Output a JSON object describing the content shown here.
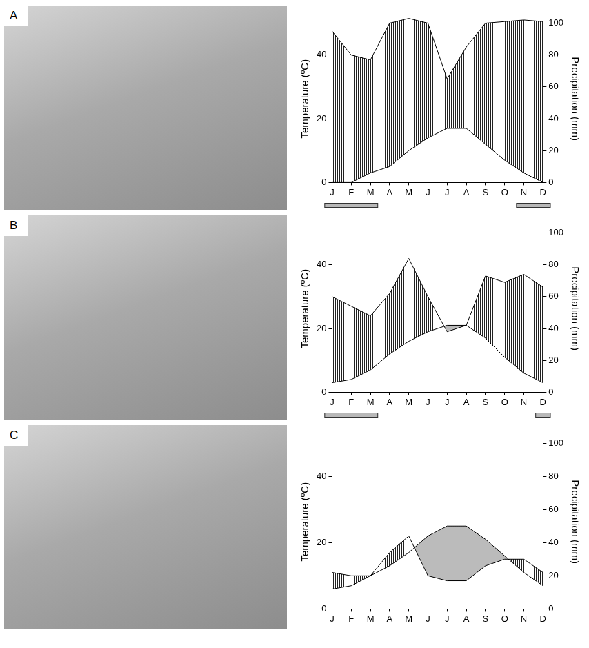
{
  "chart_data": [
    {
      "type": "line",
      "panel": "A",
      "categories": [
        "J",
        "F",
        "M",
        "A",
        "M",
        "J",
        "J",
        "A",
        "S",
        "O",
        "N",
        "D"
      ],
      "y_label": "Temperature (ºC)",
      "y2_label": "Precipitation (mm)",
      "ylim": [
        0,
        52.5
      ],
      "yticks": [
        0,
        20,
        40
      ],
      "y2lim": [
        0,
        105
      ],
      "y2ticks": [
        0,
        20,
        40,
        60,
        80,
        100
      ],
      "series": [
        {
          "axis": "y",
          "color": "#000000",
          "values": [
            0,
            0,
            3,
            5,
            10,
            14,
            17,
            17,
            12,
            7,
            3,
            0
          ]
        },
        {
          "axis": "y2",
          "color": "#000000",
          "values": [
            95,
            80,
            77,
            100,
            103,
            100,
            65,
            85,
            100,
            101,
            102,
            101
          ]
        }
      ],
      "frost": [
        true,
        true,
        true,
        false,
        false,
        false,
        false,
        false,
        false,
        false,
        true,
        true
      ]
    },
    {
      "type": "line",
      "panel": "B",
      "categories": [
        "J",
        "F",
        "M",
        "A",
        "M",
        "J",
        "J",
        "A",
        "S",
        "O",
        "N",
        "D"
      ],
      "y_label": "Temperature (ºC)",
      "y2_label": "Precipitation (mm)",
      "ylim": [
        0,
        52.5
      ],
      "yticks": [
        0,
        20,
        40
      ],
      "y2lim": [
        0,
        105
      ],
      "y2ticks": [
        0,
        20,
        40,
        60,
        80,
        100
      ],
      "series": [
        {
          "axis": "y",
          "color": "#000000",
          "values": [
            3,
            4,
            7,
            12,
            16,
            19,
            21,
            21,
            17,
            11,
            6,
            3
          ]
        },
        {
          "axis": "y2",
          "color": "#000000",
          "values": [
            60,
            54,
            48,
            62,
            84,
            60,
            38,
            42,
            73,
            69,
            74,
            66
          ]
        }
      ],
      "frost": [
        true,
        true,
        true,
        false,
        false,
        false,
        false,
        false,
        false,
        false,
        false,
        true
      ]
    },
    {
      "type": "line",
      "panel": "C",
      "categories": [
        "J",
        "F",
        "M",
        "A",
        "M",
        "J",
        "J",
        "A",
        "S",
        "O",
        "N",
        "D"
      ],
      "y_label": "Temperature (ºC)",
      "y2_label": "Precipitation (mm)",
      "ylim": [
        0,
        52.5
      ],
      "yticks": [
        0,
        20,
        40
      ],
      "y2lim": [
        0,
        105
      ],
      "y2ticks": [
        0,
        20,
        40,
        60,
        80,
        100
      ],
      "series": [
        {
          "axis": "y",
          "color": "#000000",
          "values": [
            6,
            7,
            10,
            13,
            17,
            22,
            25,
            25,
            21,
            16,
            11,
            7
          ]
        },
        {
          "axis": "y2",
          "color": "#000000",
          "values": [
            22,
            20,
            20,
            34,
            44,
            20,
            17,
            17,
            26,
            30,
            30,
            22
          ]
        }
      ]
    }
  ]
}
